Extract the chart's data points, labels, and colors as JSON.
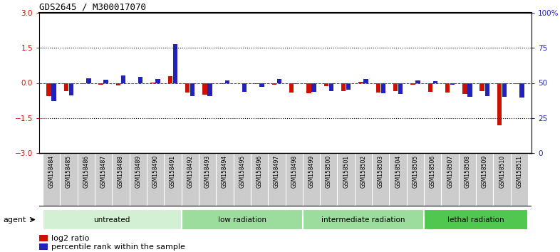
{
  "title": "GDS2645 / M300017070",
  "samples": [
    "GSM158484",
    "GSM158485",
    "GSM158486",
    "GSM158487",
    "GSM158488",
    "GSM158489",
    "GSM158490",
    "GSM158491",
    "GSM158492",
    "GSM158493",
    "GSM158494",
    "GSM158495",
    "GSM158496",
    "GSM158497",
    "GSM158498",
    "GSM158499",
    "GSM158500",
    "GSM158501",
    "GSM158502",
    "GSM158503",
    "GSM158504",
    "GSM158505",
    "GSM158506",
    "GSM158507",
    "GSM158508",
    "GSM158509",
    "GSM158510",
    "GSM158511"
  ],
  "log2_ratio": [
    -0.55,
    -0.35,
    -0.05,
    -0.08,
    -0.12,
    -0.02,
    0.02,
    0.3,
    -0.42,
    -0.5,
    -0.06,
    -0.02,
    -0.06,
    -0.08,
    -0.42,
    -0.45,
    -0.15,
    -0.35,
    0.05,
    -0.4,
    -0.35,
    -0.08,
    -0.38,
    -0.42,
    -0.48,
    -0.35,
    -1.8,
    -0.04
  ],
  "percentile_scaled": [
    -0.78,
    -0.52,
    0.2,
    0.15,
    0.32,
    0.25,
    0.18,
    1.65,
    -0.55,
    -0.55,
    0.1,
    -0.38,
    -0.18,
    0.18,
    -0.05,
    -0.38,
    -0.35,
    -0.3,
    0.18,
    -0.45,
    -0.48,
    0.12,
    0.08,
    -0.08,
    -0.6,
    -0.55,
    -0.58,
    -0.62
  ],
  "groups": [
    {
      "label": "untreated",
      "start": 0,
      "end": 8,
      "color": "#d4f0d4"
    },
    {
      "label": "low radiation",
      "start": 8,
      "end": 15,
      "color": "#9cdc9c"
    },
    {
      "label": "intermediate radiation",
      "start": 15,
      "end": 22,
      "color": "#9cdc9c"
    },
    {
      "label": "lethal radiation",
      "start": 22,
      "end": 28,
      "color": "#50c850"
    }
  ],
  "ylim_left": [
    -3,
    3
  ],
  "ylim_right": [
    0,
    100
  ],
  "yticks_left": [
    -3,
    -1.5,
    0,
    1.5,
    3
  ],
  "yticks_right": [
    0,
    25,
    50,
    75,
    100
  ],
  "hlines_dotted": [
    -1.5,
    1.5
  ],
  "red_color": "#cc1100",
  "blue_color": "#2222bb",
  "ticklabel_bg": "#cccccc",
  "agent_label": "agent"
}
